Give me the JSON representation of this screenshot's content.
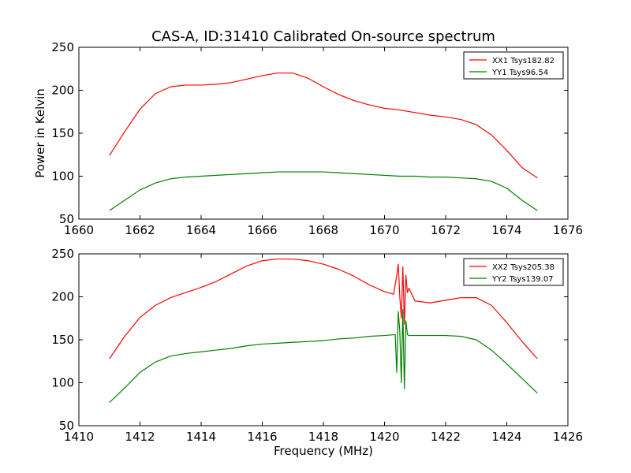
{
  "chart_data": [
    {
      "type": "line",
      "title": "CAS-A, ID:31410 Calibrated On-source spectrum",
      "xlabel": "",
      "ylabel": "Power in Kelvin",
      "xlim": [
        1660,
        1676
      ],
      "ylim": [
        50,
        250
      ],
      "xticks": [
        "1660",
        "1662",
        "1664",
        "1666",
        "1668",
        "1670",
        "1672",
        "1674",
        "1676"
      ],
      "yticks": [
        "50",
        "100",
        "150",
        "200",
        "250"
      ],
      "grid": false,
      "legend_position": "top-right",
      "series": [
        {
          "name": "XX1 Tsys182.82",
          "color": "#ff0000",
          "x": [
            1661.0,
            1661.5,
            1662.0,
            1662.5,
            1663.0,
            1663.5,
            1664.0,
            1664.5,
            1665.0,
            1665.5,
            1666.0,
            1666.5,
            1667.0,
            1667.5,
            1668.0,
            1668.5,
            1669.0,
            1669.5,
            1670.0,
            1670.5,
            1671.0,
            1671.5,
            1672.0,
            1672.5,
            1673.0,
            1673.5,
            1674.0,
            1674.5,
            1675.0
          ],
          "y": [
            124,
            152,
            178,
            196,
            204,
            206,
            206,
            207,
            209,
            213,
            217,
            220,
            220,
            214,
            204,
            195,
            188,
            183,
            179,
            177,
            174,
            171,
            169,
            166,
            160,
            148,
            130,
            110,
            98
          ]
        },
        {
          "name": "YY1 Tsys96.54",
          "color": "#008000",
          "x": [
            1661.0,
            1661.5,
            1662.0,
            1662.5,
            1663.0,
            1663.5,
            1664.0,
            1664.5,
            1665.0,
            1665.5,
            1666.0,
            1666.5,
            1667.0,
            1667.5,
            1668.0,
            1668.5,
            1669.0,
            1669.5,
            1670.0,
            1670.5,
            1671.0,
            1671.5,
            1672.0,
            1672.5,
            1673.0,
            1673.5,
            1674.0,
            1674.5,
            1675.0
          ],
          "y": [
            60,
            72,
            84,
            92,
            97,
            99,
            100,
            101,
            102,
            103,
            104,
            105,
            105,
            105,
            105,
            104,
            103,
            102,
            101,
            100,
            100,
            99,
            99,
            98,
            97,
            94,
            86,
            72,
            60
          ]
        }
      ]
    },
    {
      "type": "line",
      "title": "",
      "xlabel": "Frequency (MHz)",
      "ylabel": "",
      "xlim": [
        1410,
        1426
      ],
      "ylim": [
        50,
        250
      ],
      "xticks": [
        "1410",
        "1412",
        "1414",
        "1416",
        "1418",
        "1420",
        "1422",
        "1424",
        "1426"
      ],
      "yticks": [
        "50",
        "100",
        "150",
        "200",
        "250"
      ],
      "grid": false,
      "legend_position": "top-right",
      "series": [
        {
          "name": "XX2 Tsys205.38",
          "color": "#ff0000",
          "x": [
            1411.0,
            1411.5,
            1412.0,
            1412.5,
            1413.0,
            1413.5,
            1414.0,
            1414.5,
            1415.0,
            1415.5,
            1416.0,
            1416.5,
            1417.0,
            1417.5,
            1418.0,
            1418.5,
            1419.0,
            1419.5,
            1420.0,
            1420.3,
            1420.4,
            1420.45,
            1420.5,
            1420.55,
            1420.6,
            1420.65,
            1420.7,
            1420.75,
            1420.8,
            1421.0,
            1421.5,
            1422.0,
            1422.5,
            1423.0,
            1423.5,
            1424.0,
            1424.5,
            1425.0
          ],
          "y": [
            128,
            154,
            176,
            190,
            199,
            205,
            211,
            218,
            227,
            236,
            242,
            244,
            244,
            242,
            238,
            232,
            224,
            214,
            206,
            203,
            225,
            238,
            200,
            175,
            235,
            168,
            225,
            205,
            210,
            195,
            193,
            196,
            199,
            199,
            190,
            170,
            148,
            128
          ]
        },
        {
          "name": "YY2 Tsys139.07",
          "color": "#008000",
          "x": [
            1411.0,
            1411.5,
            1412.0,
            1412.5,
            1413.0,
            1413.5,
            1414.0,
            1414.5,
            1415.0,
            1415.5,
            1416.0,
            1416.5,
            1417.0,
            1417.5,
            1418.0,
            1418.5,
            1419.0,
            1419.5,
            1420.0,
            1420.35,
            1420.4,
            1420.45,
            1420.5,
            1420.55,
            1420.6,
            1420.65,
            1420.7,
            1420.75,
            1420.8,
            1421.0,
            1421.5,
            1422.0,
            1422.5,
            1423.0,
            1423.5,
            1424.0,
            1424.5,
            1425.0
          ],
          "y": [
            77,
            94,
            112,
            124,
            131,
            134,
            136,
            138,
            140,
            143,
            145,
            146,
            147,
            148,
            149,
            151,
            152,
            154,
            155,
            156,
            112,
            183,
            160,
            100,
            185,
            93,
            172,
            156,
            155,
            155,
            155,
            155,
            154,
            150,
            138,
            122,
            105,
            88
          ]
        }
      ]
    }
  ]
}
